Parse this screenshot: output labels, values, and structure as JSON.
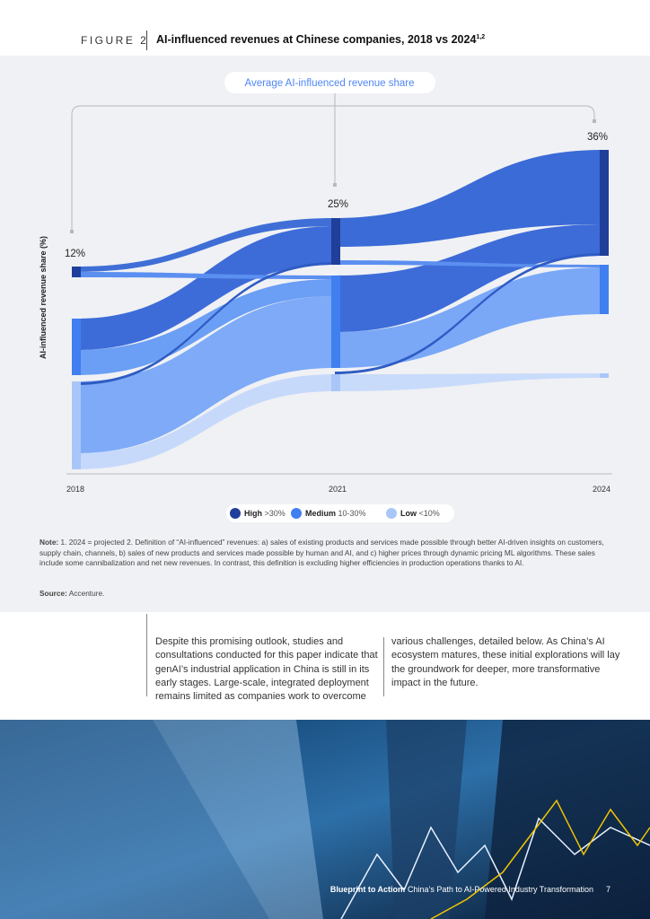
{
  "header": {
    "figure_label": "FIGURE 2",
    "title": "AI-influenced revenues at Chinese companies, 2018 vs 2024",
    "title_sup": "1,2"
  },
  "figure": {
    "callout": "Average AI-influenced revenue share",
    "y_axis_label": "AI-influenced revenue share (%)",
    "years": [
      "2018",
      "2021",
      "2024"
    ],
    "averages": [
      "12%",
      "25%",
      "36%"
    ],
    "legend": [
      {
        "name": "High",
        "range": ">30%"
      },
      {
        "name": "Medium",
        "range": "10-30%"
      },
      {
        "name": "Low",
        "range": "<10%"
      }
    ]
  },
  "notes": {
    "label": "Note:",
    "text": "1. 2024 = projected 2. Definition of “AI-influenced” revenues: a) sales of existing products and services made possible through better AI-driven insights on customers, supply chain, channels, b) sales of new products and services made possible by human and AI, and c) higher prices through dynamic pricing ML algorithms. These sales include some cannibalization and net new revenues. In contrast, this definition is excluding higher efficiencies in production operations thanks to AI.",
    "source_label": "Source:",
    "source": "Accenture."
  },
  "body": {
    "columns": [
      "Despite this promising outlook, studies and consultations conducted for this paper indicate that genAI’s industrial application in China is still in its early stages. Large-scale, integrated deployment remains limited as companies work to overcome",
      "various challenges, detailed below. As China’s AI ecosystem matures, these initial explorations will lay the groundwork for deeper, more transformative impact in the future."
    ]
  },
  "footer": {
    "bold": "Blueprint to Action:",
    "title": "China’s Path to AI-Powered Industry Transformation",
    "page": "7"
  }
}
